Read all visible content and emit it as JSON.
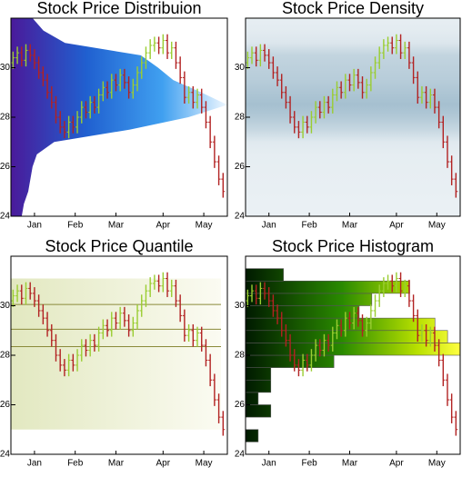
{
  "chart_data": {
    "type": "ohlc",
    "x": [
      0,
      1,
      2,
      3,
      4,
      5,
      6,
      7,
      8,
      9,
      10,
      11,
      12,
      13,
      14,
      15,
      16,
      17,
      18,
      19,
      20,
      21,
      22,
      23,
      24,
      25,
      26,
      27,
      28,
      29,
      30,
      31,
      32,
      33,
      34,
      35,
      36,
      37,
      38,
      39,
      40,
      41,
      42,
      43,
      44,
      45,
      46,
      47,
      48,
      49
    ],
    "open": [
      30.2,
      30.4,
      30.6,
      30.3,
      30.7,
      30.5,
      30.2,
      29.8,
      29.5,
      29.0,
      28.6,
      28.0,
      27.6,
      27.4,
      27.8,
      27.6,
      28.0,
      28.4,
      28.2,
      28.6,
      28.4,
      28.9,
      29.2,
      29.0,
      29.5,
      29.3,
      29.7,
      29.4,
      29.0,
      29.3,
      29.8,
      30.2,
      30.6,
      30.9,
      31.0,
      30.8,
      31.1,
      30.6,
      30.8,
      30.2,
      29.6,
      28.8,
      29.0,
      28.6,
      28.9,
      28.4,
      27.8,
      27.0,
      26.2,
      25.5
    ],
    "high": [
      30.65,
      30.85,
      30.85,
      30.95,
      30.95,
      30.75,
      30.45,
      30.05,
      29.75,
      29.25,
      28.85,
      28.25,
      27.85,
      28.05,
      28.05,
      28.25,
      28.65,
      28.65,
      28.85,
      28.85,
      29.15,
      29.45,
      29.45,
      29.75,
      29.75,
      29.95,
      29.95,
      29.65,
      29.55,
      30.05,
      30.45,
      30.85,
      31.15,
      31.25,
      31.25,
      31.35,
      31.35,
      31.05,
      31.05,
      30.45,
      29.85,
      29.25,
      29.25,
      29.15,
      29.15,
      28.65,
      28.05,
      27.25,
      26.45,
      25.75
    ],
    "low": [
      29.95,
      30.15,
      30.05,
      30.05,
      30.25,
      29.95,
      29.55,
      29.25,
      28.75,
      28.35,
      27.75,
      27.35,
      27.15,
      27.15,
      27.35,
      27.35,
      27.75,
      27.95,
      27.95,
      28.15,
      28.15,
      28.65,
      28.75,
      28.75,
      29.05,
      29.05,
      29.15,
      28.75,
      28.75,
      29.05,
      29.55,
      29.95,
      30.35,
      30.65,
      30.55,
      30.55,
      30.35,
      30.35,
      29.95,
      29.35,
      28.55,
      28.55,
      28.35,
      28.35,
      28.15,
      27.55,
      26.75,
      25.95,
      25.25,
      24.75
    ],
    "close": [
      30.4,
      30.6,
      30.3,
      30.7,
      30.5,
      30.2,
      29.8,
      29.5,
      29.0,
      28.6,
      28.0,
      27.6,
      27.4,
      27.8,
      27.6,
      28.0,
      28.4,
      28.2,
      28.6,
      28.4,
      28.9,
      29.2,
      29.0,
      29.5,
      29.3,
      29.7,
      29.4,
      29.0,
      29.3,
      29.8,
      30.2,
      30.6,
      30.9,
      31.0,
      30.8,
      31.1,
      30.6,
      30.8,
      30.2,
      29.6,
      28.8,
      29.0,
      28.6,
      28.9,
      28.4,
      27.8,
      27.0,
      26.2,
      25.5,
      25.0
    ],
    "xlim": [
      -0.5,
      50
    ],
    "xticks": [
      {
        "value": 5,
        "label": "Jan"
      },
      {
        "value": 14.5,
        "label": "Feb"
      },
      {
        "value": 24,
        "label": "Mar"
      },
      {
        "value": 35,
        "label": "Apr"
      },
      {
        "value": 44.5,
        "label": "May"
      }
    ],
    "ylim": [
      24,
      32
    ],
    "yticks": [
      24,
      26,
      28,
      30
    ],
    "up_color": "#9acd32",
    "down_color": "#b22222",
    "panels": [
      {
        "title": "Stock Price Distribuion",
        "overlay": "distribution"
      },
      {
        "title": "Stock Price Density",
        "overlay": "density"
      },
      {
        "title": "Stock Price Quantile",
        "overlay": "quantile"
      },
      {
        "title": "Stock Price Histogram",
        "overlay": "histogram"
      }
    ],
    "distribution": {
      "levels": [
        24,
        24.5,
        25,
        25.5,
        26,
        26.5,
        27,
        27.5,
        28,
        28.5,
        29,
        29.5,
        30,
        30.5,
        31,
        31.5,
        32
      ],
      "values": [
        0.05,
        0.06,
        0.08,
        0.09,
        0.1,
        0.12,
        0.2,
        0.55,
        0.82,
        1.0,
        0.88,
        0.75,
        0.68,
        0.6,
        0.25,
        0.15,
        0.1
      ]
    },
    "quantiles": [
      25.0,
      28.35,
      29.05,
      30.05,
      31.1
    ],
    "histogram": {
      "bins": [
        24.5,
        25,
        25.5,
        26,
        26.5,
        27,
        27.5,
        28,
        28.5,
        29,
        29.5,
        30,
        30.5,
        31,
        31.5
      ],
      "counts": [
        1,
        0,
        2,
        1,
        2,
        2,
        7,
        17,
        16,
        15,
        9,
        10,
        13,
        3
      ],
      "xlim": [
        0,
        17
      ]
    }
  }
}
